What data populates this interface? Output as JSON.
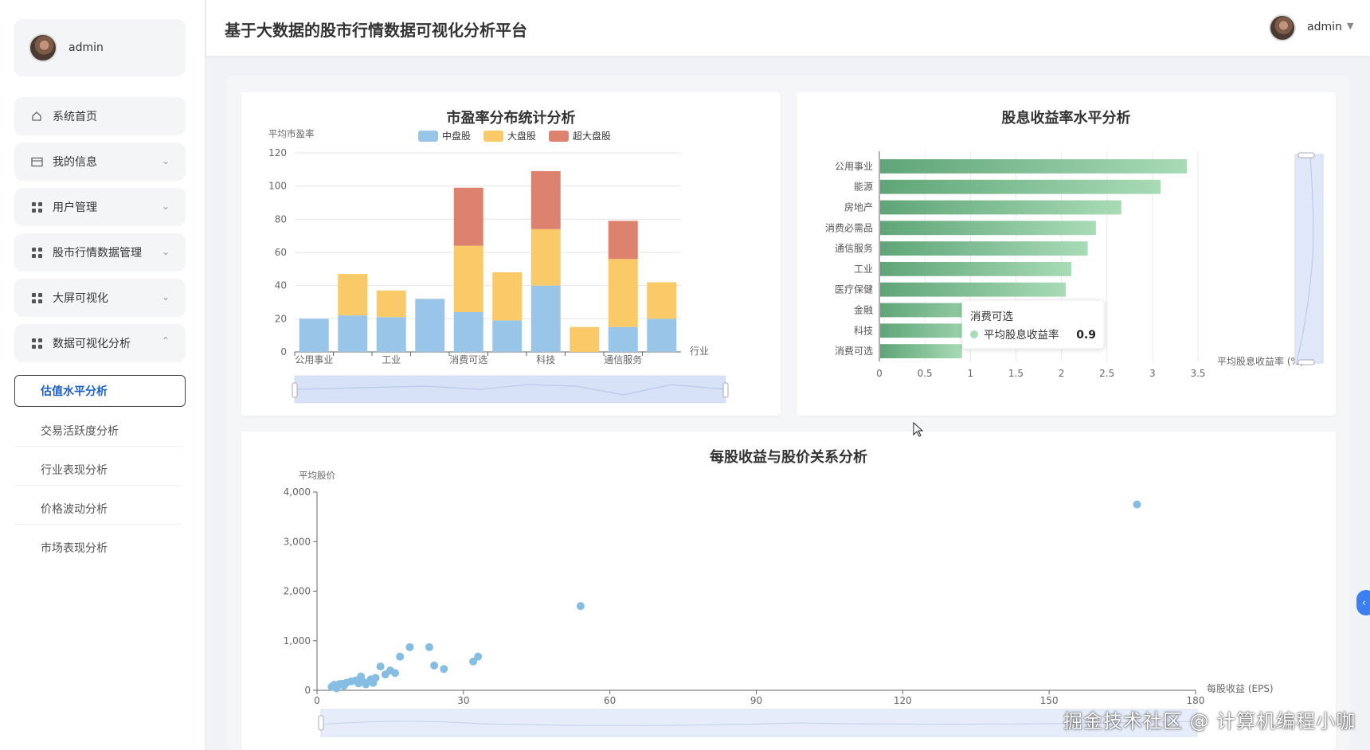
{
  "app": {
    "title": "基于大数据的股市行情数据可视化分析平台",
    "user": "admin"
  },
  "sidebar": {
    "user": "admin",
    "items": [
      {
        "label": "系统首页",
        "icon": "home-icon",
        "expand": ""
      },
      {
        "label": "我的信息",
        "icon": "card-icon",
        "expand": "down"
      },
      {
        "label": "用户管理",
        "icon": "grid-icon",
        "expand": "down"
      },
      {
        "label": "股市行情数据管理",
        "icon": "grid-icon",
        "expand": "down"
      },
      {
        "label": "大屏可视化",
        "icon": "grid-icon",
        "expand": "down"
      },
      {
        "label": "数据可视化分析",
        "icon": "grid-icon",
        "expand": "up"
      }
    ],
    "sub_items": [
      "估值水平分析",
      "交易活跃度分析",
      "行业表现分析",
      "价格波动分析",
      "市场表现分析"
    ]
  },
  "colors": {
    "mid": "#99c5e8",
    "large": "#fac968",
    "super": "#de8270",
    "bar_dark": "#5fa577",
    "bar_light": "#a8dbb6",
    "scatter": "#86bde3",
    "accent": "#1e5fc8"
  },
  "chart_data": [
    {
      "type": "bar",
      "title": "市盈率分布统计分析",
      "ylabel": "平均市盈率",
      "xlabel": "行业",
      "ylim": [
        0,
        120
      ],
      "yticks": [
        "0",
        "20",
        "40",
        "60",
        "80",
        "100",
        "120"
      ],
      "xtick_labels": [
        "公用事业",
        "工业",
        "消费可选",
        "科技",
        "通信服务"
      ],
      "stacked": true,
      "categories": [
        "公用事业",
        "能源",
        "工业",
        "房地产",
        "消费可选",
        "消费必需品",
        "科技",
        "金融",
        "通信服务",
        "医疗保健"
      ],
      "series": [
        {
          "name": "中盘股",
          "values": [
            20,
            22,
            21,
            32,
            24,
            19,
            40,
            0,
            15,
            20
          ]
        },
        {
          "name": "大盘股",
          "values": [
            0,
            25,
            16,
            0,
            40,
            29,
            34,
            15,
            41,
            22
          ]
        },
        {
          "name": "超大盘股",
          "values": [
            0,
            0,
            0,
            0,
            35,
            0,
            35,
            0,
            23,
            0
          ]
        }
      ],
      "legend": "top-center",
      "datazoom": true
    },
    {
      "type": "bar",
      "orientation": "horizontal",
      "title": "股息收益率水平分析",
      "xlabel": "平均股息收益率 (%)",
      "xlim": [
        0,
        3.5
      ],
      "xticks": [
        "0",
        "0.5",
        "1",
        "1.5",
        "2",
        "2.5",
        "3",
        "3.5"
      ],
      "categories": [
        "公用事业",
        "能源",
        "房地产",
        "消费必需品",
        "通信服务",
        "工业",
        "医疗保健",
        "金融",
        "科技",
        "消费可选"
      ],
      "values": [
        3.37,
        3.08,
        2.65,
        2.37,
        2.28,
        2.1,
        2.04,
        1.35,
        1.1,
        0.9
      ],
      "tooltip": {
        "title": "消费可选",
        "series": "平均股息收益率",
        "value": "0.9"
      }
    },
    {
      "type": "scatter",
      "title": "每股收益与股价关系分析",
      "xlabel": "每股收益 (EPS)",
      "ylabel": "平均股价",
      "xlim": [
        0,
        180
      ],
      "ylim": [
        0,
        4000
      ],
      "xticks": [
        "0",
        "30",
        "60",
        "90",
        "120",
        "150",
        "180"
      ],
      "yticks": [
        "0",
        "1,000",
        "2,000",
        "3,000",
        "4,000"
      ],
      "points": [
        [
          3,
          70
        ],
        [
          3.5,
          110
        ],
        [
          4,
          40
        ],
        [
          4.5,
          120
        ],
        [
          5,
          130
        ],
        [
          5.5,
          90
        ],
        [
          6,
          150
        ],
        [
          7,
          180
        ],
        [
          8,
          200
        ],
        [
          8.5,
          140
        ],
        [
          9,
          280
        ],
        [
          9.5,
          170
        ],
        [
          10,
          120
        ],
        [
          11,
          220
        ],
        [
          11.5,
          150
        ],
        [
          12,
          250
        ],
        [
          13,
          480
        ],
        [
          14,
          320
        ],
        [
          15,
          400
        ],
        [
          16,
          350
        ],
        [
          17,
          680
        ],
        [
          19,
          870
        ],
        [
          23,
          870
        ],
        [
          24,
          500
        ],
        [
          26,
          430
        ],
        [
          32,
          580
        ],
        [
          33,
          680
        ],
        [
          54,
          1700
        ],
        [
          168,
          3750
        ]
      ]
    }
  ],
  "watermark": "掘金技术社区 @ 计算机编程小咖"
}
